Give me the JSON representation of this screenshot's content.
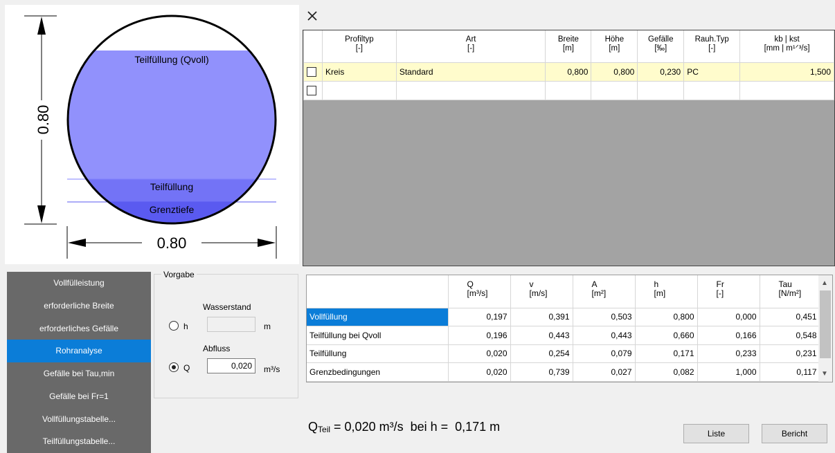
{
  "drawing": {
    "height_label": "0.80",
    "width_label": "0.80",
    "zones": [
      "Teilfüllung (Qvoll)",
      "Teilfüllung",
      "Grenztiefe"
    ],
    "colors": {
      "qvoll": "#9191fc",
      "teil": "#7373f6",
      "grenz": "#5a5af0"
    }
  },
  "toolbar": {
    "close_icon": "close-icon"
  },
  "profile_grid": {
    "columns": [
      {
        "label": "Profiltyp",
        "unit": "[-]"
      },
      {
        "label": "Art",
        "unit": "[-]"
      },
      {
        "label": "Breite",
        "unit": "[m]"
      },
      {
        "label": "Höhe",
        "unit": "[m]"
      },
      {
        "label": "Gefälle",
        "unit": "[‰]"
      },
      {
        "label": "Rauh.Typ",
        "unit": "[-]"
      },
      {
        "label": "kb | kst",
        "unit": "[mm | m¹ᐟ³/s]"
      }
    ],
    "rows": [
      {
        "profiltyp": "Kreis",
        "art": "Standard",
        "breite": "0,800",
        "hoehe": "0,800",
        "gefaelle": "0,230",
        "rauh_typ": "PC",
        "kb_kst": "1,500"
      },
      {
        "profiltyp": "",
        "art": "",
        "breite": "",
        "hoehe": "",
        "gefaelle": "",
        "rauh_typ": "",
        "kb_kst": ""
      }
    ]
  },
  "nav": {
    "items": [
      "Vollfülleistung",
      "erforderliche Breite",
      "erforderliches Gefälle",
      "Rohranalyse",
      "Gefälle bei Tau,min",
      "Gefälle bei Fr=1",
      "Vollfüllungstabelle...",
      "Teilfüllungstabelle..."
    ],
    "active": "Rohranalyse"
  },
  "vorgabe": {
    "legend": "Vorgabe",
    "wasserstand_label": "Wasserstand",
    "h_label": "h",
    "h_value": "",
    "h_unit": "m",
    "abfluss_label": "Abfluss",
    "q_label": "Q",
    "q_value": "0,020",
    "q_unit": "m³/s",
    "selected": "Q"
  },
  "result_grid": {
    "columns": [
      {
        "label": "Q",
        "unit": "[m³/s]"
      },
      {
        "label": "v",
        "unit": "[m/s]"
      },
      {
        "label": "A",
        "unit": "[m²]"
      },
      {
        "label": "h",
        "unit": "[m]"
      },
      {
        "label": "Fr",
        "unit": "[-]"
      },
      {
        "label": "Tau",
        "unit": "[N/m²]"
      }
    ],
    "rows": [
      {
        "name": "Vollfüllung",
        "values": [
          "0,197",
          "0,391",
          "0,503",
          "0,800",
          "0,000",
          "0,451"
        ]
      },
      {
        "name": "Teilfüllung bei Qvoll",
        "values": [
          "0,196",
          "0,443",
          "0,443",
          "0,660",
          "0,166",
          "0,548"
        ]
      },
      {
        "name": "Teilfüllung",
        "values": [
          "0,020",
          "0,254",
          "0,079",
          "0,171",
          "0,233",
          "0,231"
        ]
      },
      {
        "name": "Grenzbedingungen",
        "values": [
          "0,020",
          "0,739",
          "0,027",
          "0,082",
          "1,000",
          "0,117"
        ]
      }
    ],
    "selected_row": "Vollfüllung"
  },
  "summary": {
    "q_symbol": "Q",
    "q_sub": "Teil",
    "q_text": " = 0,020 m³/s  bei h =  0,171 m"
  },
  "buttons": {
    "liste": "Liste",
    "bericht": "Bericht"
  }
}
